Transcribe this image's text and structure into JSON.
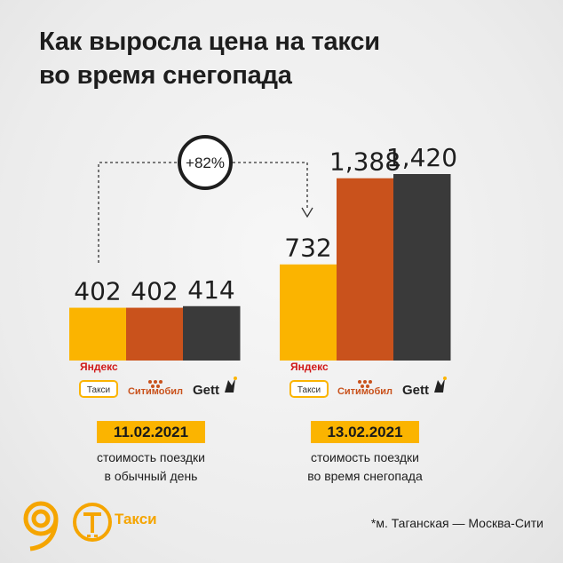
{
  "title": {
    "line1": "Как выросла цена на такси",
    "line2": "во время снегопада"
  },
  "chart_data": {
    "type": "bar",
    "title": "Как выросла цена на такси во время снегопада",
    "services": [
      "Яндекс Такси",
      "Ситимобил",
      "Gett"
    ],
    "service_colors": [
      "#fbb400",
      "#c9521c",
      "#3a3a3a"
    ],
    "groups": [
      {
        "date": "11.02.2021",
        "caption": [
          "стоимость поездки",
          "в обычный день"
        ],
        "values": [
          402,
          402,
          414
        ],
        "labels": [
          "402",
          "402",
          "414"
        ]
      },
      {
        "date": "13.02.2021",
        "caption": [
          "стоимость поездки",
          "во время снегопада"
        ],
        "values": [
          732,
          1388,
          1420
        ],
        "labels": [
          "732",
          "1,388",
          "1,420"
        ]
      }
    ],
    "ylim": [
      0,
      1420
    ],
    "annotation": "+82%"
  },
  "logos": {
    "yandex": {
      "line1": "Яндекс",
      "line2": "Такси"
    },
    "citymobil": "Ситимобил",
    "gett": "Gett"
  },
  "footnote": "*м. Таганская — Москва-Сити",
  "brand": {
    "logo1": "9-logo-icon",
    "logo2": "taxi-t-icon",
    "text": "Такси",
    "color": "#f5a500"
  }
}
